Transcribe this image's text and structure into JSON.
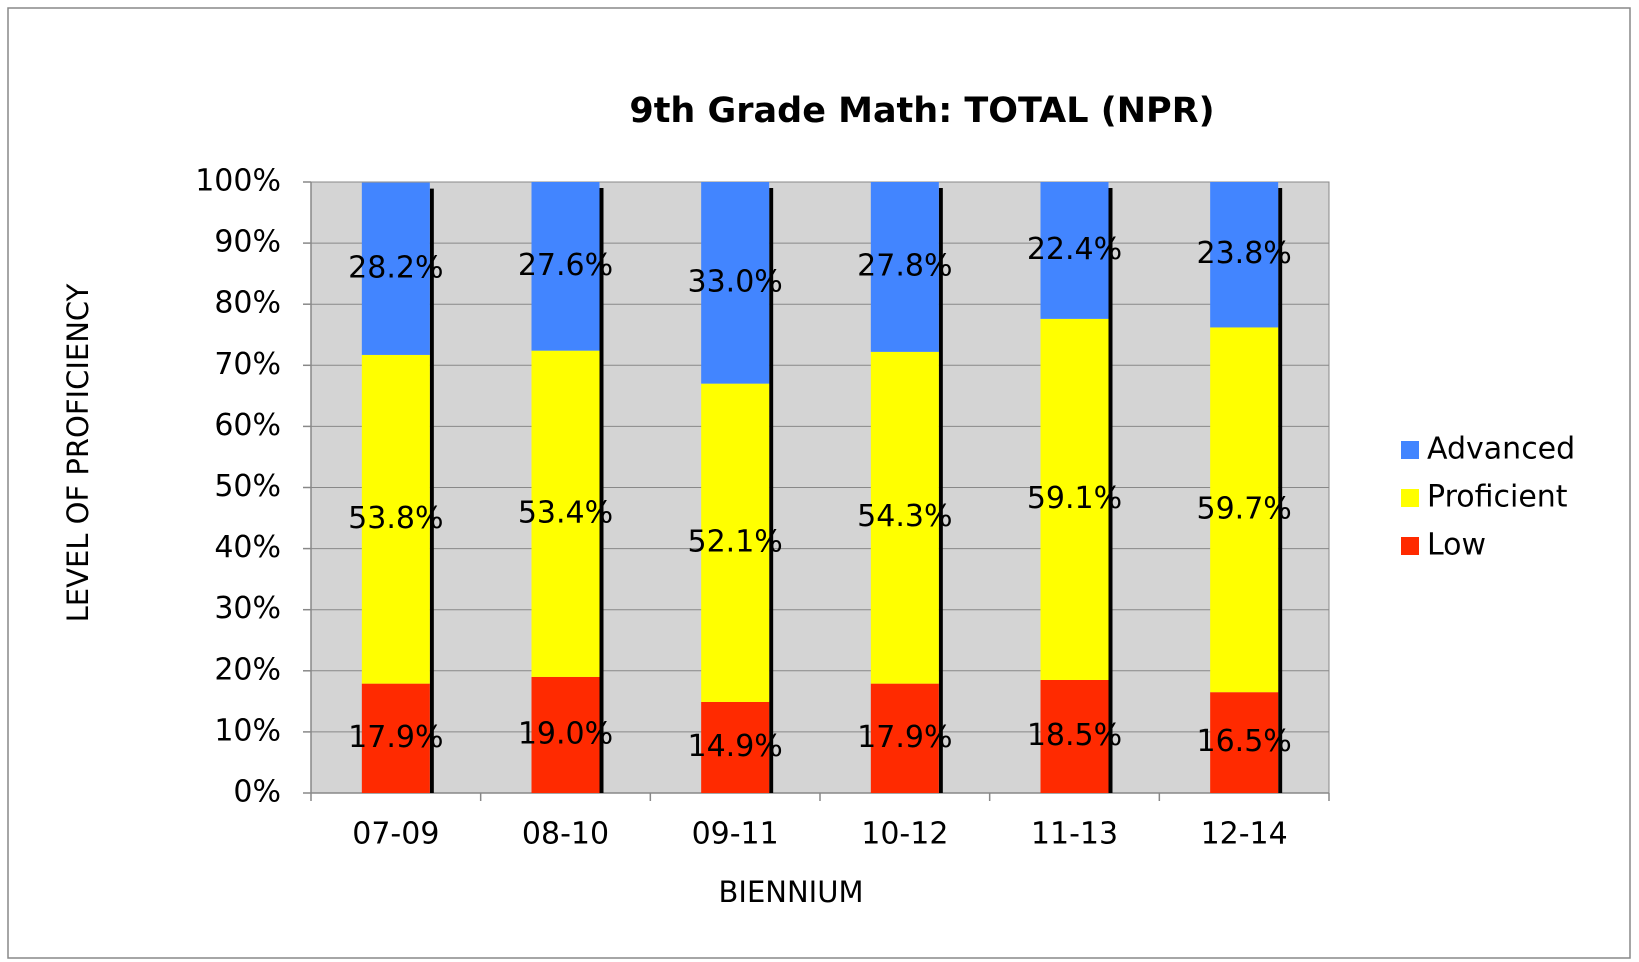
{
  "chart_data": {
    "type": "stacked_bar",
    "title": "9th Grade Math:  TOTAL (NPR)",
    "xlabel": "BIENNIUM",
    "ylabel": "LEVEL OF PROFICIENCY",
    "categories": [
      "07-09",
      "08-10",
      "09-11",
      "10-12",
      "11-13",
      "12-14"
    ],
    "series": [
      {
        "name": "Low",
        "color": "#ff2a00",
        "values": [
          17.9,
          19.0,
          14.9,
          17.9,
          18.5,
          16.5
        ],
        "value_labels": [
          "17.9%",
          "19.0%",
          "14.9%",
          "17.9%",
          "18.5%",
          "16.5%"
        ]
      },
      {
        "name": "Proficient",
        "color": "#ffff00",
        "values": [
          53.8,
          53.4,
          52.1,
          54.3,
          59.1,
          59.7
        ],
        "value_labels": [
          "53.8%",
          "53.4%",
          "52.1%",
          "54.3%",
          "59.1%",
          "59.7%"
        ]
      },
      {
        "name": "Advanced",
        "color": "#4285ff",
        "values": [
          28.2,
          27.6,
          33.0,
          27.8,
          22.4,
          23.8
        ],
        "value_labels": [
          "28.2%",
          "27.6%",
          "33.0%",
          "27.8%",
          "22.4%",
          "23.8%"
        ]
      }
    ],
    "ylim": [
      0,
      100
    ],
    "yticks": [
      {
        "value": 0,
        "label": "0%"
      },
      {
        "value": 10,
        "label": "10%"
      },
      {
        "value": 20,
        "label": "20%"
      },
      {
        "value": 30,
        "label": "30%"
      },
      {
        "value": 40,
        "label": "40%"
      },
      {
        "value": 50,
        "label": "50%"
      },
      {
        "value": 60,
        "label": "60%"
      },
      {
        "value": 70,
        "label": "70%"
      },
      {
        "value": 80,
        "label": "80%"
      },
      {
        "value": 90,
        "label": "90%"
      },
      {
        "value": 100,
        "label": "100%"
      }
    ],
    "grid": true,
    "legend": "right"
  }
}
